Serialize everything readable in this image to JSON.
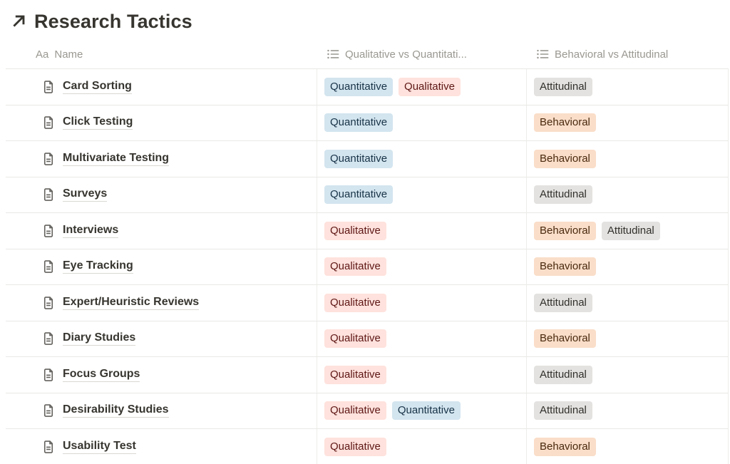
{
  "page": {
    "title": "Research Tactics",
    "title_icon": "arrow-up-right-icon"
  },
  "colors": {
    "text_primary": "#37352f",
    "text_secondary": "#9a9891",
    "divider": "#e9e9e7",
    "tag_blue_bg": "#d3e5ef",
    "tag_blue_text": "#183347",
    "tag_red_bg": "#ffe2dd",
    "tag_red_text": "#5d1715",
    "tag_gray_bg": "#e3e2e0",
    "tag_gray_text": "#32302c",
    "tag_orange_bg": "#fadec9",
    "tag_orange_text": "#49290e"
  },
  "table": {
    "columns": [
      {
        "label": "Name",
        "icon": "text-property-icon",
        "icon_glyph": "Aa"
      },
      {
        "label": "Qualitative vs Quantitati...",
        "icon": "multi-select-list-icon"
      },
      {
        "label": "Behavioral vs Attitudinal",
        "icon": "multi-select-list-icon"
      }
    ],
    "rows": [
      {
        "name": "Card Sorting",
        "qual_quant": [
          {
            "label": "Quantitative",
            "color": "blue"
          },
          {
            "label": "Qualitative",
            "color": "red"
          }
        ],
        "behav_attit": [
          {
            "label": "Attitudinal",
            "color": "gray"
          }
        ]
      },
      {
        "name": "Click Testing",
        "qual_quant": [
          {
            "label": "Quantitative",
            "color": "blue"
          }
        ],
        "behav_attit": [
          {
            "label": "Behavioral",
            "color": "orange"
          }
        ]
      },
      {
        "name": "Multivariate Testing",
        "qual_quant": [
          {
            "label": "Quantitative",
            "color": "blue"
          }
        ],
        "behav_attit": [
          {
            "label": "Behavioral",
            "color": "orange"
          }
        ]
      },
      {
        "name": "Surveys",
        "qual_quant": [
          {
            "label": "Quantitative",
            "color": "blue"
          }
        ],
        "behav_attit": [
          {
            "label": "Attitudinal",
            "color": "gray"
          }
        ]
      },
      {
        "name": "Interviews",
        "qual_quant": [
          {
            "label": "Qualitative",
            "color": "red"
          }
        ],
        "behav_attit": [
          {
            "label": "Behavioral",
            "color": "orange"
          },
          {
            "label": "Attitudinal",
            "color": "gray"
          }
        ]
      },
      {
        "name": "Eye Tracking",
        "qual_quant": [
          {
            "label": "Qualitative",
            "color": "red"
          }
        ],
        "behav_attit": [
          {
            "label": "Behavioral",
            "color": "orange"
          }
        ]
      },
      {
        "name": "Expert/Heuristic Reviews",
        "qual_quant": [
          {
            "label": "Qualitative",
            "color": "red"
          }
        ],
        "behav_attit": [
          {
            "label": "Attitudinal",
            "color": "gray"
          }
        ]
      },
      {
        "name": "Diary Studies",
        "qual_quant": [
          {
            "label": "Qualitative",
            "color": "red"
          }
        ],
        "behav_attit": [
          {
            "label": "Behavioral",
            "color": "orange"
          }
        ]
      },
      {
        "name": "Focus Groups",
        "qual_quant": [
          {
            "label": "Qualitative",
            "color": "red"
          }
        ],
        "behav_attit": [
          {
            "label": "Attitudinal",
            "color": "gray"
          }
        ]
      },
      {
        "name": "Desirability Studies",
        "qual_quant": [
          {
            "label": "Qualitative",
            "color": "red"
          },
          {
            "label": "Quantitative",
            "color": "blue"
          }
        ],
        "behav_attit": [
          {
            "label": "Attitudinal",
            "color": "gray"
          }
        ]
      },
      {
        "name": "Usability Test",
        "qual_quant": [
          {
            "label": "Qualitative",
            "color": "red"
          }
        ],
        "behav_attit": [
          {
            "label": "Behavioral",
            "color": "orange"
          }
        ]
      }
    ]
  }
}
